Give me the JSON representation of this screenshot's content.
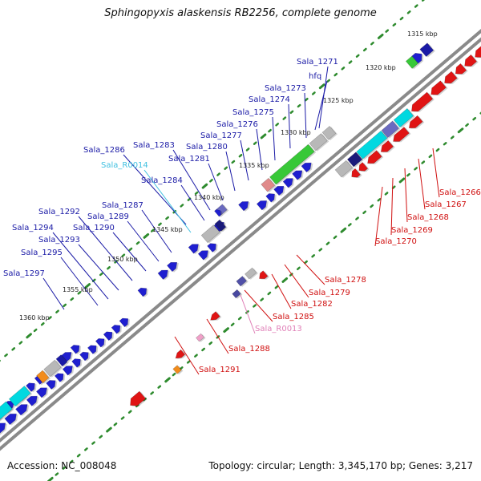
{
  "title": "Sphingopyxis alaskensis RB2256, complete genome",
  "footer": {
    "accession": "Accession: NC_008048",
    "topology": "Topology: circular; Length: 3,345,170 bp; Genes: 3,217"
  },
  "colors": {
    "background": "#ffffff",
    "backbone": "#7f7f7f",
    "tick_dots": "#2e8b2e",
    "forward_gene": "#1f1fd0",
    "reverse_gene": "#e01414",
    "rrna": "#00d8e0",
    "rrna_gene": "#38c838",
    "trna": "#f28c1c",
    "hypothetical": "#b8b8b8",
    "blue_label": "#1a1aa6",
    "red_label": "#d01010",
    "cyan_label": "#40c0e0",
    "pink_label": "#e080b8"
  },
  "scale_labels": [
    {
      "name": "kbp-1315",
      "text": "1315 kbp"
    },
    {
      "name": "kbp-1320",
      "text": "1320 kbp"
    },
    {
      "name": "kbp-1325",
      "text": "1325 kbp"
    },
    {
      "name": "kbp-1330",
      "text": "1330 kbp"
    },
    {
      "name": "kbp-1335",
      "text": "1335 kbp"
    },
    {
      "name": "kbp-1340",
      "text": "1340 kbp"
    },
    {
      "name": "kbp-1345",
      "text": "1345 kbp"
    },
    {
      "name": "kbp-1350",
      "text": "1350 kbp"
    },
    {
      "name": "kbp-1355",
      "text": "1355 kbp"
    },
    {
      "name": "kbp-1360",
      "text": "1360 kbp"
    }
  ],
  "gene_labels": [
    {
      "name": "label-sala-1271",
      "text": "Sala_1271",
      "strand": "forward"
    },
    {
      "name": "label-hfq",
      "text": "hfq",
      "strand": "forward"
    },
    {
      "name": "label-sala-1273",
      "text": "Sala_1273",
      "strand": "forward"
    },
    {
      "name": "label-sala-1274",
      "text": "Sala_1274",
      "strand": "forward"
    },
    {
      "name": "label-sala-1275",
      "text": "Sala_1275",
      "strand": "forward"
    },
    {
      "name": "label-sala-1276",
      "text": "Sala_1276",
      "strand": "forward"
    },
    {
      "name": "label-sala-1277",
      "text": "Sala_1277",
      "strand": "forward"
    },
    {
      "name": "label-sala-1280",
      "text": "Sala_1280",
      "strand": "forward"
    },
    {
      "name": "label-sala-1281",
      "text": "Sala_1281",
      "strand": "forward"
    },
    {
      "name": "label-sala-1283",
      "text": "Sala_1283",
      "strand": "forward"
    },
    {
      "name": "label-sala-1284",
      "text": "Sala_1284",
      "strand": "forward"
    },
    {
      "name": "label-sala-1286",
      "text": "Sala_1286",
      "strand": "forward"
    },
    {
      "name": "label-sala-r0014",
      "text": "Sala_R0014",
      "strand": "forward-rna"
    },
    {
      "name": "label-sala-1287",
      "text": "Sala_1287",
      "strand": "forward"
    },
    {
      "name": "label-sala-1289",
      "text": "Sala_1289",
      "strand": "forward"
    },
    {
      "name": "label-sala-1290",
      "text": "Sala_1290",
      "strand": "forward"
    },
    {
      "name": "label-sala-1292",
      "text": "Sala_1292",
      "strand": "forward"
    },
    {
      "name": "label-sala-1293",
      "text": "Sala_1293",
      "strand": "forward"
    },
    {
      "name": "label-sala-1294",
      "text": "Sala_1294",
      "strand": "forward"
    },
    {
      "name": "label-sala-1295",
      "text": "Sala_1295",
      "strand": "forward"
    },
    {
      "name": "label-sala-1297",
      "text": "Sala_1297",
      "strand": "forward"
    },
    {
      "name": "label-sala-1266",
      "text": "Sala_1266",
      "strand": "reverse"
    },
    {
      "name": "label-sala-1267",
      "text": "Sala_1267",
      "strand": "reverse"
    },
    {
      "name": "label-sala-1268",
      "text": "Sala_1268",
      "strand": "reverse"
    },
    {
      "name": "label-sala-1269",
      "text": "Sala_1269",
      "strand": "reverse"
    },
    {
      "name": "label-sala-1270",
      "text": "Sala_1270",
      "strand": "reverse"
    },
    {
      "name": "label-sala-1278",
      "text": "Sala_1278",
      "strand": "reverse"
    },
    {
      "name": "label-sala-1279",
      "text": "Sala_1279",
      "strand": "reverse"
    },
    {
      "name": "label-sala-1282",
      "text": "Sala_1282",
      "strand": "reverse"
    },
    {
      "name": "label-sala-1285",
      "text": "Sala_1285",
      "strand": "reverse"
    },
    {
      "name": "label-sala-r0013",
      "text": "Sala_R0013",
      "strand": "reverse-rna"
    },
    {
      "name": "label-sala-1288",
      "text": "Sala_1288",
      "strand": "reverse"
    },
    {
      "name": "label-sala-1291",
      "text": "Sala_1291",
      "strand": "reverse"
    }
  ]
}
